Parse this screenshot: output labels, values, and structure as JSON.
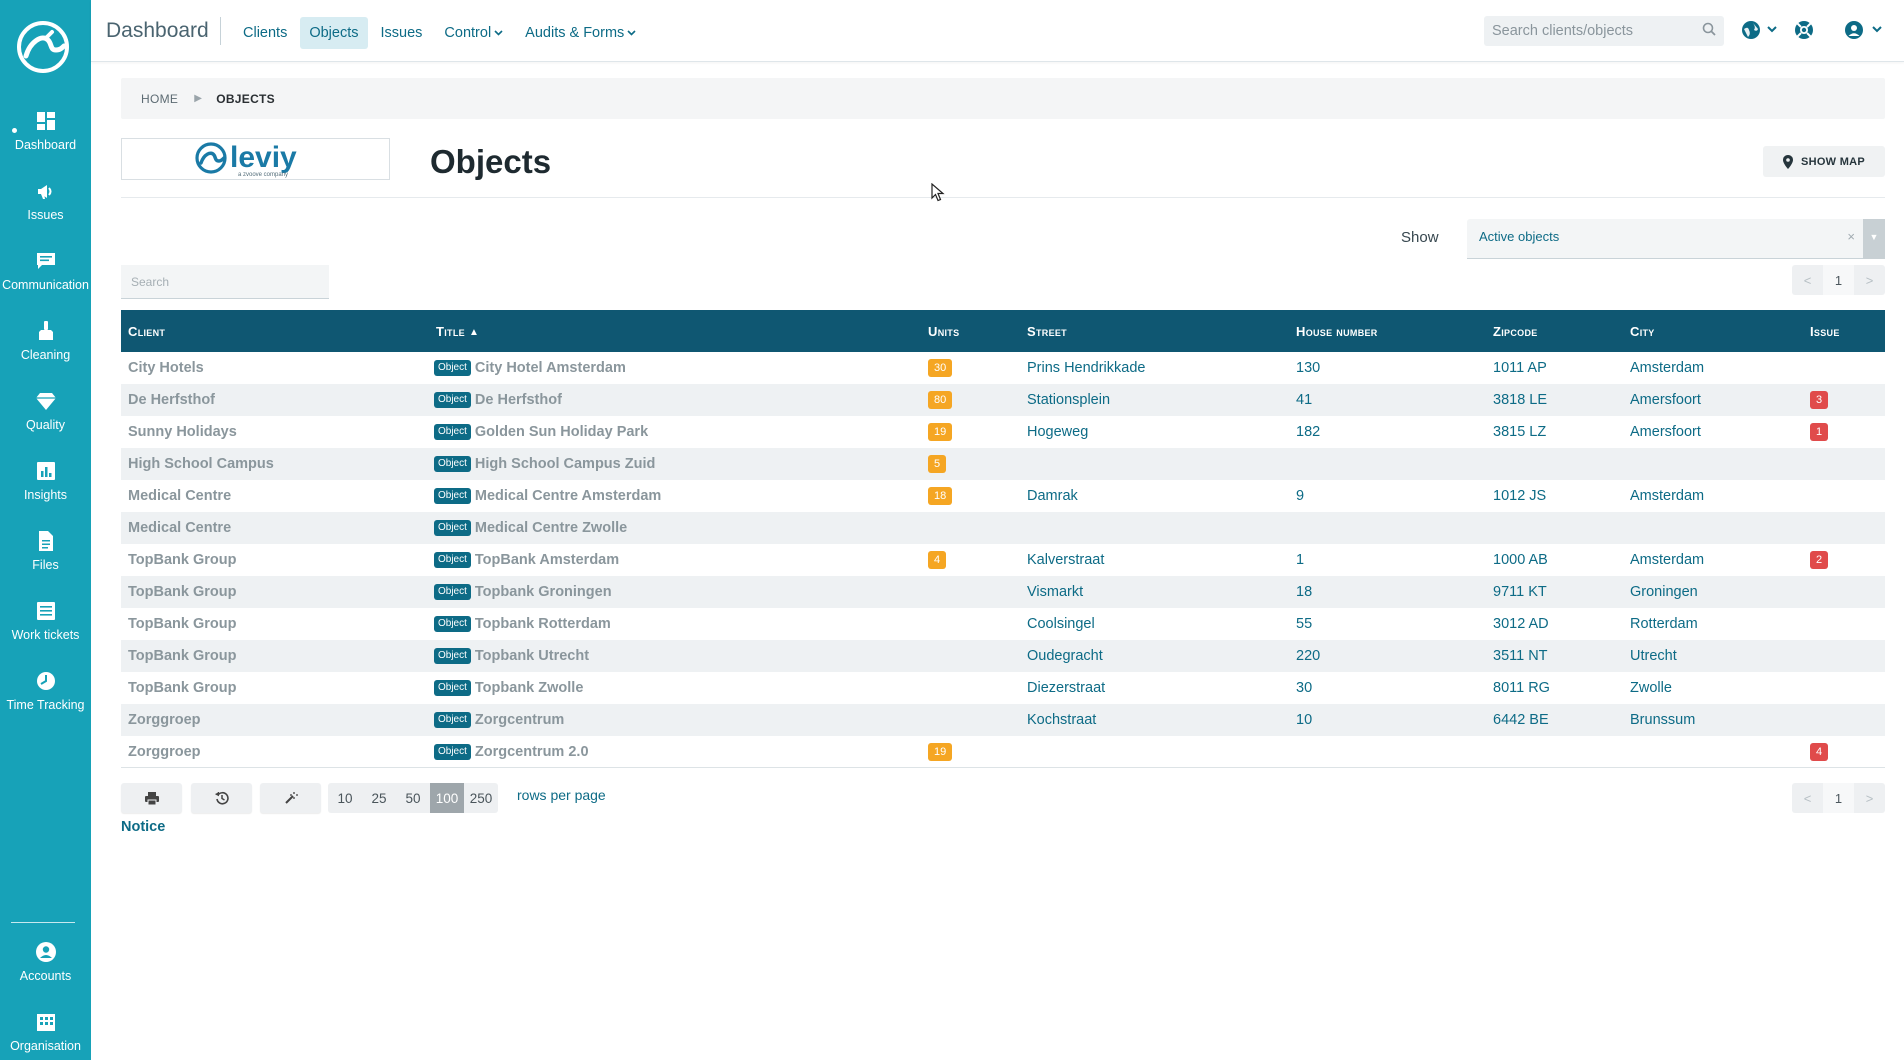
{
  "sidebar": {
    "items": [
      {
        "label": "Dashboard",
        "icon": "dashboard-icon"
      },
      {
        "label": "Issues",
        "icon": "megaphone-icon"
      },
      {
        "label": "Communication",
        "icon": "chat-icon"
      },
      {
        "label": "Cleaning",
        "icon": "cleaning-icon"
      },
      {
        "label": "Quality",
        "icon": "diamond-icon"
      },
      {
        "label": "Insights",
        "icon": "chart-icon"
      },
      {
        "label": "Files",
        "icon": "file-icon"
      },
      {
        "label": "Work tickets",
        "icon": "ticket-icon"
      },
      {
        "label": "Time Tracking",
        "icon": "clock-icon"
      }
    ],
    "bottom_items": [
      {
        "label": "Accounts",
        "icon": "account-icon"
      },
      {
        "label": "Organisation",
        "icon": "building-icon"
      }
    ]
  },
  "topbar": {
    "title": "Dashboard",
    "nav": [
      "Clients",
      "Objects",
      "Issues",
      "Control",
      "Audits & Forms"
    ],
    "active_nav": "Objects",
    "search_placeholder": "Search clients/objects"
  },
  "breadcrumb": {
    "home": "HOME",
    "current": "OBJECTS"
  },
  "header": {
    "brand_logo": "leviy",
    "brand_tagline": "a zvoove company",
    "page_title": "Objects",
    "show_map": "SHOW MAP"
  },
  "filter": {
    "show_label": "Show",
    "selected": "Active objects",
    "clear": "×",
    "arrow": "▼"
  },
  "table_search_placeholder": "Search",
  "pager": {
    "prev": "<",
    "page": "1",
    "next": ">"
  },
  "table": {
    "columns": [
      "Client",
      "Title",
      "Units",
      "Street",
      "House number",
      "Zipcode",
      "City",
      "Issue"
    ],
    "sort_indicator": "▲",
    "object_tag": "Object",
    "rows": [
      {
        "client": "City Hotels",
        "title": "City Hotel Amsterdam",
        "units": "30",
        "street": "Prins Hendrikkade",
        "house": "130",
        "zip": "1011 AP",
        "city": "Amsterdam",
        "issue": ""
      },
      {
        "client": "De Herfsthof",
        "title": "De Herfsthof",
        "units": "80",
        "street": "Stationsplein",
        "house": "41",
        "zip": "3818 LE",
        "city": "Amersfoort",
        "issue": "3"
      },
      {
        "client": "Sunny Holidays",
        "title": "Golden Sun Holiday Park",
        "units": "19",
        "street": "Hogeweg",
        "house": "182",
        "zip": "3815 LZ",
        "city": "Amersfoort",
        "issue": "1"
      },
      {
        "client": "High School Campus",
        "title": "High School Campus Zuid",
        "units": "5",
        "street": "",
        "house": "",
        "zip": "",
        "city": "",
        "issue": ""
      },
      {
        "client": "Medical Centre",
        "title": "Medical Centre Amsterdam",
        "units": "18",
        "street": "Damrak",
        "house": "9",
        "zip": "1012 JS",
        "city": "Amsterdam",
        "issue": ""
      },
      {
        "client": "Medical Centre",
        "title": "Medical Centre Zwolle",
        "units": "",
        "street": "",
        "house": "",
        "zip": "",
        "city": "",
        "issue": ""
      },
      {
        "client": "TopBank Group",
        "title": "TopBank Amsterdam",
        "units": "4",
        "street": "Kalverstraat",
        "house": "1",
        "zip": "1000 AB",
        "city": "Amsterdam",
        "issue": "2"
      },
      {
        "client": "TopBank Group",
        "title": "Topbank Groningen",
        "units": "",
        "street": "Vismarkt",
        "house": "18",
        "zip": "9711 KT",
        "city": "Groningen",
        "issue": ""
      },
      {
        "client": "TopBank Group",
        "title": "Topbank Rotterdam",
        "units": "",
        "street": "Coolsingel",
        "house": "55",
        "zip": "3012 AD",
        "city": "Rotterdam",
        "issue": ""
      },
      {
        "client": "TopBank Group",
        "title": "Topbank Utrecht",
        "units": "",
        "street": "Oudegracht",
        "house": "220",
        "zip": "3511 NT",
        "city": "Utrecht",
        "issue": ""
      },
      {
        "client": "TopBank Group",
        "title": "Topbank Zwolle",
        "units": "",
        "street": "Diezerstraat",
        "house": "30",
        "zip": "8011 RG",
        "city": "Zwolle",
        "issue": ""
      },
      {
        "client": "Zorggroep",
        "title": "Zorgcentrum",
        "units": "",
        "street": "Kochstraat",
        "house": "10",
        "zip": "6442 BE",
        "city": "Brunssum",
        "issue": ""
      },
      {
        "client": "Zorggroep",
        "title": "Zorgcentrum 2.0",
        "units": "19",
        "street": "",
        "house": "",
        "zip": "",
        "city": "",
        "issue": "4"
      }
    ]
  },
  "footer": {
    "tools": [
      "print-icon",
      "history-icon",
      "magic-wand-icon"
    ],
    "rows_options": [
      "10",
      "25",
      "50",
      "100",
      "250"
    ],
    "rows_selected": "100",
    "rows_label": "rows per page",
    "notice": "Notice"
  },
  "colors": {
    "sidebar": "#17a2b8",
    "table_header": "#0f5772",
    "link": "#0d6b86",
    "units_badge": "#f5a623",
    "issue_badge": "#e04b4b"
  }
}
